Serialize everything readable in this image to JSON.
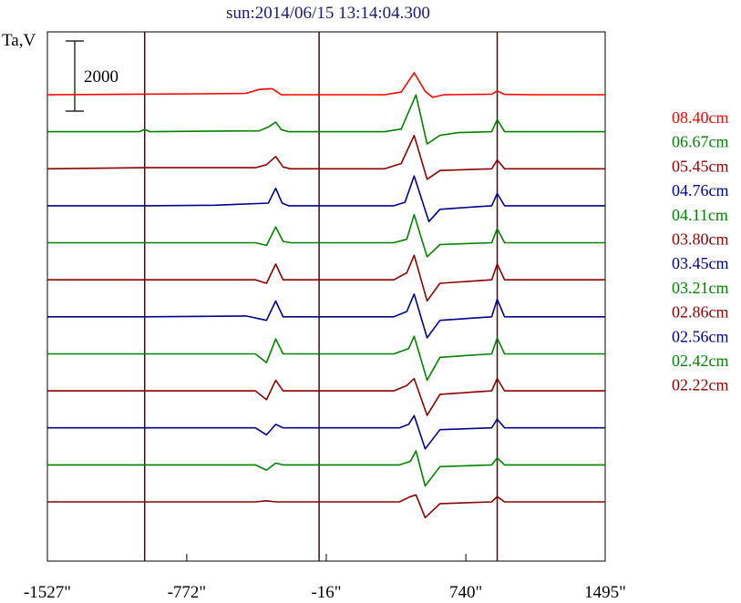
{
  "chart_data": {
    "type": "line",
    "title": "sun:2014/06/15 13:14:04.300",
    "ylabel": "Ta,V",
    "scale_bar": {
      "label": "2000",
      "value": 2000
    },
    "xlim": [
      -1527,
      1495
    ],
    "x_ticks": [
      {
        "value": -1527,
        "label": "-1527\""
      },
      {
        "value": -772,
        "label": "-772\""
      },
      {
        "value": -16,
        "label": "-16\""
      },
      {
        "value": 740,
        "label": "740\""
      },
      {
        "value": 1495,
        "label": "1495\""
      }
    ],
    "marker_lines_x": [
      -1000,
      -55,
      910
    ],
    "marker_line_color": "#3a1010",
    "series": [
      {
        "name": "08.40cm",
        "color": "#ff0000",
        "baseline": 0,
        "points": [
          [
            -1527,
            0
          ],
          [
            -700,
            -50
          ],
          [
            -450,
            -80
          ],
          [
            -380,
            -300
          ],
          [
            -310,
            -350
          ],
          [
            -260,
            0
          ],
          [
            300,
            0
          ],
          [
            390,
            -150
          ],
          [
            460,
            -1250
          ],
          [
            520,
            -200
          ],
          [
            560,
            150
          ],
          [
            620,
            0
          ],
          [
            880,
            -30
          ],
          [
            910,
            -220
          ],
          [
            950,
            -20
          ],
          [
            1100,
            0
          ],
          [
            1495,
            0
          ]
        ]
      },
      {
        "name": "06.67cm",
        "color": "#008000",
        "baseline": 0,
        "points": [
          [
            -1527,
            0
          ],
          [
            -1030,
            0
          ],
          [
            -1000,
            -130
          ],
          [
            -970,
            0
          ],
          [
            -620,
            -40
          ],
          [
            -380,
            -50
          ],
          [
            -330,
            -270
          ],
          [
            -290,
            -550
          ],
          [
            -260,
            -120
          ],
          [
            -220,
            0
          ],
          [
            300,
            0
          ],
          [
            390,
            -150
          ],
          [
            470,
            -2100
          ],
          [
            530,
            700
          ],
          [
            600,
            200
          ],
          [
            700,
            50
          ],
          [
            880,
            0
          ],
          [
            910,
            -700
          ],
          [
            950,
            0
          ],
          [
            1495,
            0
          ]
        ]
      },
      {
        "name": "05.45cm",
        "color": "#8b0000",
        "baseline": 0,
        "points": [
          [
            -1527,
            0
          ],
          [
            -1000,
            -60
          ],
          [
            -400,
            -60
          ],
          [
            -340,
            -230
          ],
          [
            -290,
            -700
          ],
          [
            -250,
            -100
          ],
          [
            -210,
            0
          ],
          [
            300,
            0
          ],
          [
            390,
            -300
          ],
          [
            460,
            -1900
          ],
          [
            530,
            600
          ],
          [
            600,
            100
          ],
          [
            880,
            0
          ],
          [
            910,
            -500
          ],
          [
            950,
            0
          ],
          [
            1495,
            0
          ]
        ]
      },
      {
        "name": "04.76cm",
        "color": "#00008b",
        "baseline": 0,
        "points": [
          [
            -1527,
            0
          ],
          [
            -1000,
            0
          ],
          [
            -620,
            -30
          ],
          [
            -330,
            -150
          ],
          [
            -290,
            -1000
          ],
          [
            -255,
            -150
          ],
          [
            -220,
            0
          ],
          [
            350,
            0
          ],
          [
            410,
            -200
          ],
          [
            460,
            -1700
          ],
          [
            540,
            900
          ],
          [
            600,
            200
          ],
          [
            800,
            50
          ],
          [
            880,
            0
          ],
          [
            910,
            -700
          ],
          [
            950,
            0
          ],
          [
            1495,
            0
          ]
        ]
      },
      {
        "name": "04.11cm",
        "color": "#008000",
        "baseline": 0,
        "points": [
          [
            -1527,
            0
          ],
          [
            -1000,
            0
          ],
          [
            -400,
            0
          ],
          [
            -340,
            150
          ],
          [
            -290,
            -900
          ],
          [
            -250,
            -80
          ],
          [
            -210,
            0
          ],
          [
            350,
            0
          ],
          [
            420,
            -200
          ],
          [
            460,
            -1600
          ],
          [
            530,
            800
          ],
          [
            600,
            100
          ],
          [
            880,
            0
          ],
          [
            910,
            -800
          ],
          [
            950,
            0
          ],
          [
            1495,
            0
          ]
        ]
      },
      {
        "name": "03.80cm",
        "color": "#8b0000",
        "baseline": 0,
        "points": [
          [
            -1527,
            0
          ],
          [
            -1000,
            0
          ],
          [
            -400,
            0
          ],
          [
            -340,
            200
          ],
          [
            -290,
            -900
          ],
          [
            -250,
            0
          ],
          [
            -210,
            0
          ],
          [
            350,
            0
          ],
          [
            420,
            -400
          ],
          [
            460,
            -1400
          ],
          [
            530,
            1200
          ],
          [
            600,
            200
          ],
          [
            880,
            0
          ],
          [
            910,
            -900
          ],
          [
            950,
            0
          ],
          [
            1495,
            0
          ]
        ]
      },
      {
        "name": "03.45cm",
        "color": "#00008b",
        "baseline": 0,
        "points": [
          [
            -1527,
            0
          ],
          [
            -1000,
            0
          ],
          [
            -450,
            -50
          ],
          [
            -340,
            200
          ],
          [
            -290,
            -900
          ],
          [
            -250,
            0
          ],
          [
            -210,
            0
          ],
          [
            350,
            0
          ],
          [
            420,
            -300
          ],
          [
            460,
            -1300
          ],
          [
            530,
            1200
          ],
          [
            600,
            200
          ],
          [
            880,
            0
          ],
          [
            910,
            -1000
          ],
          [
            950,
            0
          ],
          [
            1495,
            0
          ]
        ]
      },
      {
        "name": "03.21cm",
        "color": "#008000",
        "baseline": 0,
        "points": [
          [
            -1527,
            0
          ],
          [
            -1000,
            0
          ],
          [
            -400,
            0
          ],
          [
            -340,
            500
          ],
          [
            -290,
            -850
          ],
          [
            -250,
            0
          ],
          [
            -210,
            0
          ],
          [
            350,
            0
          ],
          [
            430,
            -300
          ],
          [
            460,
            -1000
          ],
          [
            530,
            1500
          ],
          [
            600,
            200
          ],
          [
            880,
            0
          ],
          [
            910,
            -900
          ],
          [
            950,
            0
          ],
          [
            1495,
            0
          ]
        ]
      },
      {
        "name": "02.86cm",
        "color": "#8b0000",
        "baseline": 0,
        "points": [
          [
            -1527,
            0
          ],
          [
            -1000,
            0
          ],
          [
            -400,
            0
          ],
          [
            -340,
            500
          ],
          [
            -290,
            -600
          ],
          [
            -250,
            0
          ],
          [
            -210,
            0
          ],
          [
            350,
            0
          ],
          [
            420,
            -300
          ],
          [
            460,
            -700
          ],
          [
            530,
            1400
          ],
          [
            600,
            200
          ],
          [
            880,
            0
          ],
          [
            910,
            -700
          ],
          [
            950,
            0
          ],
          [
            1495,
            0
          ]
        ]
      },
      {
        "name": "02.56cm",
        "color": "#00008b",
        "baseline": 0,
        "points": [
          [
            -1527,
            0
          ],
          [
            -1000,
            0
          ],
          [
            -400,
            0
          ],
          [
            -340,
            400
          ],
          [
            -290,
            -200
          ],
          [
            -250,
            0
          ],
          [
            -210,
            0
          ],
          [
            380,
            0
          ],
          [
            430,
            -200
          ],
          [
            460,
            -700
          ],
          [
            520,
            1200
          ],
          [
            600,
            100
          ],
          [
            880,
            0
          ],
          [
            910,
            -500
          ],
          [
            950,
            0
          ],
          [
            1495,
            0
          ]
        ]
      },
      {
        "name": "02.42cm",
        "color": "#008000",
        "baseline": 0,
        "points": [
          [
            -1527,
            0
          ],
          [
            -1000,
            0
          ],
          [
            -400,
            0
          ],
          [
            -340,
            300
          ],
          [
            -290,
            -100
          ],
          [
            -250,
            0
          ],
          [
            -210,
            0
          ],
          [
            380,
            0
          ],
          [
            440,
            -200
          ],
          [
            470,
            -800
          ],
          [
            520,
            1200
          ],
          [
            600,
            100
          ],
          [
            880,
            0
          ],
          [
            910,
            -400
          ],
          [
            950,
            0
          ],
          [
            1495,
            0
          ]
        ]
      },
      {
        "name": "02.22cm",
        "color": "#8b0000",
        "baseline": 0,
        "points": [
          [
            -1527,
            0
          ],
          [
            -1000,
            0
          ],
          [
            -400,
            0
          ],
          [
            -340,
            -60
          ],
          [
            -290,
            0
          ],
          [
            380,
            0
          ],
          [
            440,
            -300
          ],
          [
            470,
            -400
          ],
          [
            520,
            900
          ],
          [
            600,
            100
          ],
          [
            880,
            0
          ],
          [
            910,
            -300
          ],
          [
            950,
            0
          ],
          [
            1495,
            0
          ]
        ]
      }
    ]
  }
}
